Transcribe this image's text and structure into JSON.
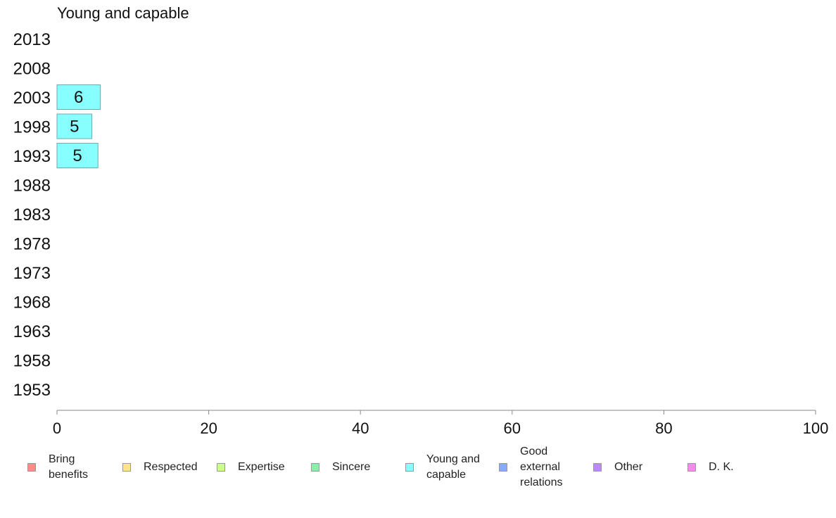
{
  "chart_data": {
    "type": "bar",
    "orientation": "horizontal",
    "title": "Young and capable",
    "categories": [
      "2013",
      "2008",
      "2003",
      "1998",
      "1993",
      "1988",
      "1983",
      "1978",
      "1973",
      "1968",
      "1963",
      "1958",
      "1953"
    ],
    "series": [
      {
        "name": "Young and capable",
        "color": "#88ffff",
        "values": [
          null,
          null,
          5.7,
          4.6,
          5.4,
          null,
          null,
          null,
          null,
          null,
          null,
          null,
          null
        ],
        "data_labels": [
          "",
          "",
          "6",
          "5",
          "5",
          "",
          "",
          "",
          "",
          "",
          "",
          "",
          ""
        ]
      }
    ],
    "xlim": [
      0,
      100
    ],
    "xticks": [
      "0",
      "20",
      "40",
      "60",
      "80",
      "100"
    ],
    "grid": false,
    "legend_position": "bottom"
  },
  "legend": [
    {
      "label": "Bring\nbenefits",
      "color": "#ff8a8a"
    },
    {
      "label": "Respected",
      "color": "#ffe48a"
    },
    {
      "label": "Expertise",
      "color": "#ccff8a"
    },
    {
      "label": "Sincere",
      "color": "#88f0a8"
    },
    {
      "label": "Young and\ncapable",
      "color": "#88ffff"
    },
    {
      "label": "Good\nexternal\nrelations",
      "color": "#88aaff"
    },
    {
      "label": "Other",
      "color": "#bb88ff"
    },
    {
      "label": "D. K.",
      "color": "#ff88ee"
    }
  ]
}
